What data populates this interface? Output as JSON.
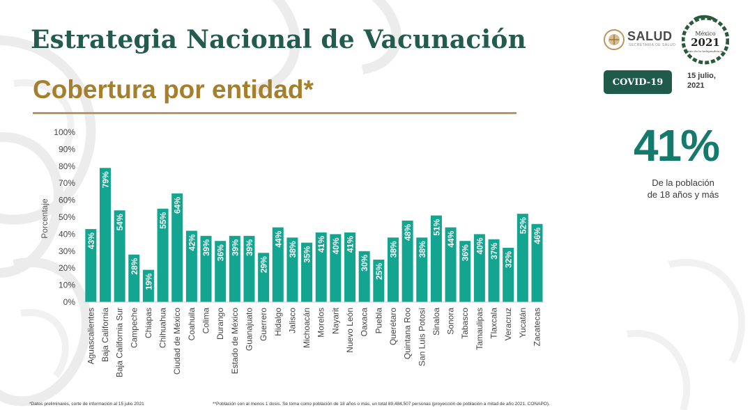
{
  "header": {
    "title": "Estrategia Nacional de Vacunación",
    "subtitle": "Cobertura por entidad*"
  },
  "logos": {
    "salud_label": "SALUD",
    "salud_small": "SECRETARÍA DE SALUD",
    "emblem_top": "México",
    "emblem_year": "2021",
    "emblem_line": "Año de la Independencia"
  },
  "badge": {
    "label": "COVID-19"
  },
  "date": {
    "line1": "15 julio,",
    "line2": "2021"
  },
  "summary": {
    "value": "41%",
    "caption_line1": "De la población",
    "caption_line2": "de 18 años y más"
  },
  "colors": {
    "title": "#235b4e",
    "subtitle": "#a57f2c",
    "accent": "#bc955c",
    "bar": "#13a58f",
    "badge": "#1f5a4b",
    "big": "#147b6c"
  },
  "chart_data": {
    "type": "bar",
    "ylabel": "Porcentaje",
    "ylim": [
      0,
      100
    ],
    "yticks": [
      "0%",
      "10%",
      "20%",
      "30%",
      "40%",
      "50%",
      "60%",
      "70%",
      "80%",
      "90%",
      "100%"
    ],
    "categories": [
      "Aguascalientes",
      "Baja California",
      "Baja California Sur",
      "Campeche",
      "Chiapas",
      "Chihuahua",
      "Ciudad de México",
      "Coahuila",
      "Colima",
      "Durango",
      "Estado de México",
      "Guanajuato",
      "Guerrero",
      "Hidalgo",
      "Jalisco",
      "Michoacán",
      "Morelos",
      "Nayarit",
      "Nuevo León",
      "Oaxaca",
      "Puebla",
      "Querétaro",
      "Quintana Roo",
      "San Luis Potosí",
      "Sinaloa",
      "Sonora",
      "Tabasco",
      "Tamaulipas",
      "Tlaxcala",
      "Veracruz",
      "Yucatán",
      "Zacatecas"
    ],
    "values": [
      43,
      79,
      54,
      28,
      19,
      55,
      64,
      42,
      39,
      36,
      39,
      39,
      29,
      44,
      38,
      35,
      41,
      40,
      41,
      30,
      25,
      38,
      48,
      38,
      51,
      44,
      36,
      40,
      37,
      32,
      52,
      46
    ],
    "labels": [
      "43%",
      "79%",
      "54%",
      "28%",
      "19%",
      "55%",
      "64%",
      "42%",
      "39%",
      "36%",
      "39%",
      "39%",
      "29%",
      "44%",
      "38%",
      "35%",
      "41%",
      "40%",
      "41%",
      "30%",
      "25%",
      "38%",
      "48%",
      "38%",
      "51%",
      "44%",
      "36%",
      "40%",
      "37%",
      "32%",
      "52%",
      "46%"
    ],
    "grid": false,
    "legend": "none"
  },
  "footnotes": {
    "left": "*Datos preliminares, corte de información al 15 julio  2021",
    "right": "**Población con al menos 1 dosis. Se toma como población de 18 años o más, un total 89,484,507 personas (proyección de población a mitad de año 2021, CONAPO)."
  }
}
